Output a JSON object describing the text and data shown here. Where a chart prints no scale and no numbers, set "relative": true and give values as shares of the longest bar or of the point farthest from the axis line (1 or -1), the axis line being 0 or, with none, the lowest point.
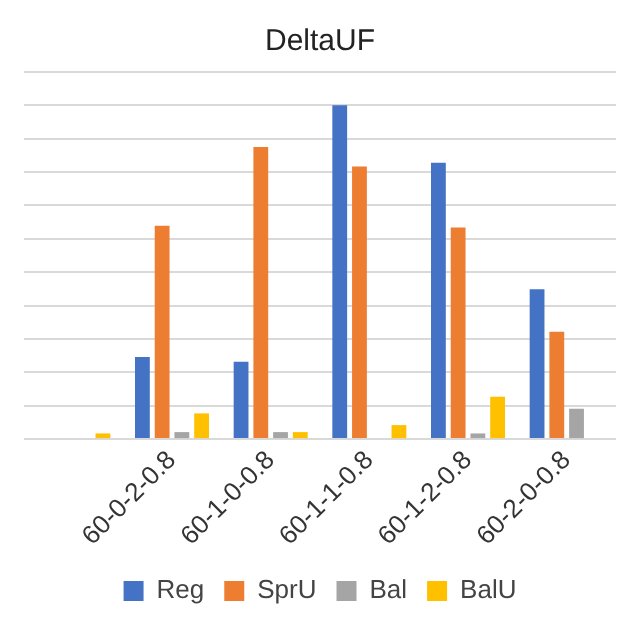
{
  "chart_data": {
    "type": "bar",
    "title": "DeltaUF",
    "relative": true,
    "grid": "y",
    "legend": "bottom",
    "categories": [
      null,
      "60-0-2-0.8",
      "60-1-0-0.8",
      "60-1-1-0.8",
      "60-1-2-0.8",
      "60-2-0-0.8"
    ],
    "series": [
      {
        "name": "Reg",
        "color": "#4472c4",
        "values": [
          null,
          0.246,
          0.232,
          1,
          0.828,
          0.449
        ]
      },
      {
        "name": "SprU",
        "color": "#ed7d31",
        "values": [
          null,
          0.639,
          0.875,
          0.817,
          0.634,
          0.322
        ]
      },
      {
        "name": "Bal",
        "color": "#a5a5a5",
        "values": [
          null,
          0.021,
          0.021,
          0,
          0.017,
          0.091
        ]
      },
      {
        "name": "BalU",
        "color": "#ffc000",
        "values": [
          0.017,
          0.077,
          0.021,
          0.042,
          0.127,
          null
        ]
      }
    ]
  }
}
